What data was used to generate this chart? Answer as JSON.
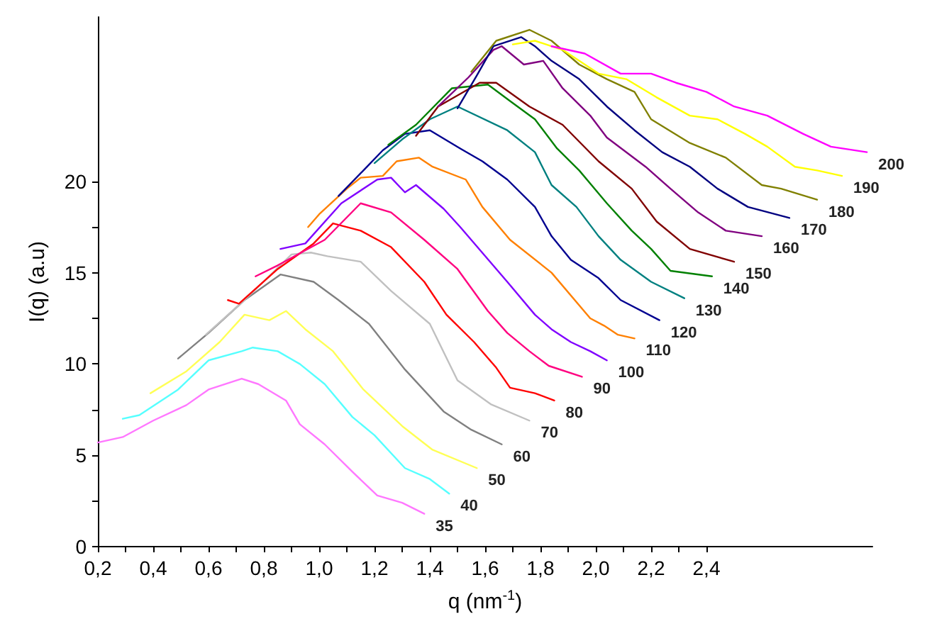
{
  "chart_data": {
    "type": "line",
    "xlabel": "q (nm$^{-1}$)",
    "ylabel": "I(q) (a.u)",
    "xlim": [
      0.2,
      3.0
    ],
    "ylim": [
      0,
      29
    ],
    "xticks": [
      {
        "value": 0.2,
        "label": "0,2"
      },
      {
        "value": 0.3,
        "label": null
      },
      {
        "value": 0.4,
        "label": "0,4"
      },
      {
        "value": 0.5,
        "label": null
      },
      {
        "value": 0.6,
        "label": "0,6"
      },
      {
        "value": 0.7,
        "label": null
      },
      {
        "value": 0.8,
        "label": "0,8"
      },
      {
        "value": 0.9,
        "label": null
      },
      {
        "value": 1.0,
        "label": "1,0"
      },
      {
        "value": 1.1,
        "label": null
      },
      {
        "value": 1.2,
        "label": "1,2"
      },
      {
        "value": 1.3,
        "label": null
      },
      {
        "value": 1.4,
        "label": "1,4"
      },
      {
        "value": 1.5,
        "label": null
      },
      {
        "value": 1.6,
        "label": "1,6"
      },
      {
        "value": 1.7,
        "label": null
      },
      {
        "value": 1.8,
        "label": "1,8"
      },
      {
        "value": 1.9,
        "label": null
      },
      {
        "value": 2.0,
        "label": "2,0"
      },
      {
        "value": 2.1,
        "label": null
      },
      {
        "value": 2.2,
        "label": "2,2"
      },
      {
        "value": 2.3,
        "label": null
      },
      {
        "value": 2.4,
        "label": "2,4"
      }
    ],
    "yticks": [
      0,
      {
        "value": 2.5,
        "label": null
      },
      5,
      {
        "value": 7.5,
        "label": null
      },
      10,
      {
        "value": 12.5,
        "label": null
      },
      15,
      {
        "value": 17.5,
        "label": null
      },
      20
    ],
    "grid": false,
    "legend": false,
    "marker": "none",
    "line_style": "solid",
    "series": [
      {
        "name": "35",
        "color": "#ff77ff",
        "x": [
          0.2,
          0.29,
          0.4,
          0.52,
          0.6,
          0.72,
          0.78,
          0.88,
          0.93,
          1.02,
          1.12,
          1.21,
          1.3,
          1.38
        ],
        "values": [
          5.7,
          6.0,
          6.9,
          7.75,
          8.6,
          9.2,
          8.9,
          8.0,
          6.7,
          5.6,
          4.1,
          2.8,
          2.4,
          1.8
        ]
      },
      {
        "name": "40",
        "color": "#55ffff",
        "x": [
          0.29,
          0.35,
          0.49,
          0.6,
          0.72,
          0.76,
          0.85,
          0.93,
          1.02,
          1.12,
          1.2,
          1.31,
          1.4,
          1.47
        ],
        "values": [
          7.0,
          7.2,
          8.6,
          10.2,
          10.7,
          10.9,
          10.7,
          10.0,
          8.9,
          7.1,
          6.1,
          4.3,
          3.7,
          2.9
        ]
      },
      {
        "name": "50",
        "color": "#ffff55",
        "x": [
          0.39,
          0.52,
          0.64,
          0.73,
          0.82,
          0.88,
          0.95,
          1.05,
          1.16,
          1.3,
          1.41,
          1.57
        ],
        "values": [
          8.4,
          9.6,
          11.2,
          12.7,
          12.4,
          12.9,
          11.9,
          10.7,
          8.6,
          6.6,
          5.3,
          4.3
        ]
      },
      {
        "name": "60",
        "color": "#808080",
        "x": [
          0.49,
          0.6,
          0.73,
          0.86,
          0.98,
          1.07,
          1.18,
          1.31,
          1.45,
          1.55,
          1.66
        ],
        "values": [
          10.3,
          11.7,
          13.5,
          14.9,
          14.5,
          13.5,
          12.2,
          9.7,
          7.4,
          6.4,
          5.6
        ]
      },
      {
        "name": "70",
        "color": "#c0c0c0",
        "x": [
          0.59,
          0.73,
          0.9,
          0.97,
          1.03,
          1.15,
          1.26,
          1.4,
          1.5,
          1.62,
          1.76
        ],
        "values": [
          11.6,
          13.5,
          16.0,
          16.1,
          15.9,
          15.6,
          14.0,
          12.2,
          9.1,
          7.8,
          6.9
        ]
      },
      {
        "name": "80",
        "color": "#ff0000",
        "x": [
          0.67,
          0.71,
          0.85,
          0.98,
          1.05,
          1.15,
          1.26,
          1.38,
          1.46,
          1.56,
          1.64,
          1.69,
          1.78,
          1.85
        ],
        "values": [
          13.5,
          13.3,
          15.2,
          16.6,
          17.7,
          17.3,
          16.4,
          14.5,
          12.7,
          11.2,
          9.8,
          8.7,
          8.4,
          8.0
        ]
      },
      {
        "name": "90",
        "color": "#ff0080",
        "x": [
          0.77,
          0.85,
          1.02,
          1.15,
          1.26,
          1.38,
          1.5,
          1.61,
          1.68,
          1.76,
          1.83,
          1.95
        ],
        "values": [
          14.8,
          15.4,
          16.8,
          18.8,
          18.3,
          16.8,
          15.2,
          12.9,
          11.7,
          10.7,
          9.9,
          9.3
        ]
      },
      {
        "name": "100",
        "color": "#8000ff",
        "x": [
          0.86,
          0.95,
          1.08,
          1.21,
          1.26,
          1.31,
          1.35,
          1.45,
          1.51,
          1.68,
          1.78,
          1.84,
          1.91,
          1.98,
          2.04
        ],
        "values": [
          16.3,
          16.6,
          18.8,
          20.1,
          20.2,
          19.4,
          19.8,
          18.5,
          17.5,
          14.5,
          12.7,
          11.9,
          11.2,
          10.7,
          10.2
        ]
      },
      {
        "name": "110",
        "color": "#ff8000",
        "x": [
          0.96,
          1.0,
          1.1,
          1.15,
          1.23,
          1.28,
          1.36,
          1.41,
          1.53,
          1.59,
          1.69,
          1.84,
          1.98,
          2.03,
          2.08,
          2.14
        ],
        "values": [
          17.5,
          18.2,
          19.6,
          20.2,
          20.3,
          21.1,
          21.3,
          20.8,
          20.1,
          18.6,
          16.8,
          15.0,
          12.5,
          12.1,
          11.6,
          11.4
        ]
      },
      {
        "name": "120",
        "color": "#000090",
        "x": [
          1.07,
          1.16,
          1.23,
          1.31,
          1.4,
          1.51,
          1.59,
          1.68,
          1.78,
          1.84,
          1.91,
          2.01,
          2.09,
          2.23
        ],
        "values": [
          19.2,
          20.6,
          21.7,
          22.6,
          22.8,
          21.8,
          21.1,
          20.1,
          18.6,
          17.0,
          15.7,
          14.7,
          13.5,
          12.4
        ]
      },
      {
        "name": "130",
        "color": "#008080",
        "x": [
          1.2,
          1.3,
          1.4,
          1.5,
          1.68,
          1.78,
          1.84,
          1.93,
          2.01,
          2.09,
          2.2,
          2.32
        ],
        "values": [
          21.0,
          22.3,
          23.4,
          24.1,
          22.8,
          21.6,
          19.8,
          18.6,
          17.0,
          15.7,
          14.5,
          13.6
        ]
      },
      {
        "name": "140",
        "color": "#008000",
        "x": [
          1.25,
          1.35,
          1.48,
          1.61,
          1.69,
          1.78,
          1.86,
          1.94,
          2.04,
          2.13,
          2.2,
          2.27,
          2.42
        ],
        "values": [
          22.0,
          23.1,
          25.1,
          25.3,
          24.4,
          23.4,
          21.8,
          20.6,
          18.8,
          17.3,
          16.3,
          15.1,
          14.8
        ]
      },
      {
        "name": "150",
        "color": "#800000",
        "x": [
          1.35,
          1.43,
          1.58,
          1.64,
          1.76,
          1.88,
          2.01,
          2.13,
          2.22,
          2.34,
          2.5
        ],
        "values": [
          22.5,
          24.1,
          25.4,
          25.4,
          24.1,
          23.1,
          21.1,
          19.6,
          17.8,
          16.3,
          15.6
        ]
      },
      {
        "name": "160",
        "color": "#800080",
        "x": [
          1.43,
          1.54,
          1.63,
          1.66,
          1.74,
          1.81,
          1.88,
          1.98,
          2.04,
          2.18,
          2.27,
          2.37,
          2.47,
          2.6
        ],
        "values": [
          24.1,
          25.7,
          27.2,
          27.4,
          26.4,
          26.6,
          25.1,
          23.6,
          22.4,
          20.8,
          19.6,
          18.3,
          17.3,
          17.0
        ]
      },
      {
        "name": "170",
        "color": "#000080",
        "x": [
          1.5,
          1.57,
          1.63,
          1.73,
          1.78,
          1.84,
          1.94,
          2.04,
          2.14,
          2.24,
          2.34,
          2.44,
          2.55,
          2.7
        ],
        "values": [
          24.0,
          25.8,
          27.4,
          27.9,
          27.4,
          26.6,
          25.6,
          24.1,
          22.8,
          21.6,
          20.8,
          19.6,
          18.6,
          18.0
        ]
      },
      {
        "name": "180",
        "color": "#808000",
        "x": [
          1.55,
          1.64,
          1.76,
          1.84,
          1.94,
          2.04,
          2.14,
          2.2,
          2.34,
          2.47,
          2.6,
          2.67,
          2.8
        ],
        "values": [
          26.0,
          27.7,
          28.3,
          27.7,
          26.4,
          25.6,
          24.9,
          23.4,
          22.1,
          21.3,
          19.8,
          19.6,
          19.0
        ]
      },
      {
        "name": "190",
        "color": "#ffff00",
        "x": [
          1.7,
          1.78,
          1.88,
          2.01,
          2.11,
          2.22,
          2.34,
          2.44,
          2.54,
          2.62,
          2.72,
          2.8,
          2.89
        ],
        "values": [
          27.5,
          27.7,
          27.2,
          25.9,
          25.6,
          24.6,
          23.6,
          23.4,
          22.6,
          21.9,
          20.8,
          20.6,
          20.3
        ]
      },
      {
        "name": "200",
        "color": "#ff00ff",
        "x": [
          1.84,
          1.96,
          2.09,
          2.2,
          2.29,
          2.4,
          2.5,
          2.62,
          2.75,
          2.85,
          2.98
        ],
        "values": [
          27.4,
          27.0,
          25.9,
          25.9,
          25.4,
          24.9,
          24.1,
          23.6,
          22.6,
          21.9,
          21.6
        ]
      }
    ]
  }
}
